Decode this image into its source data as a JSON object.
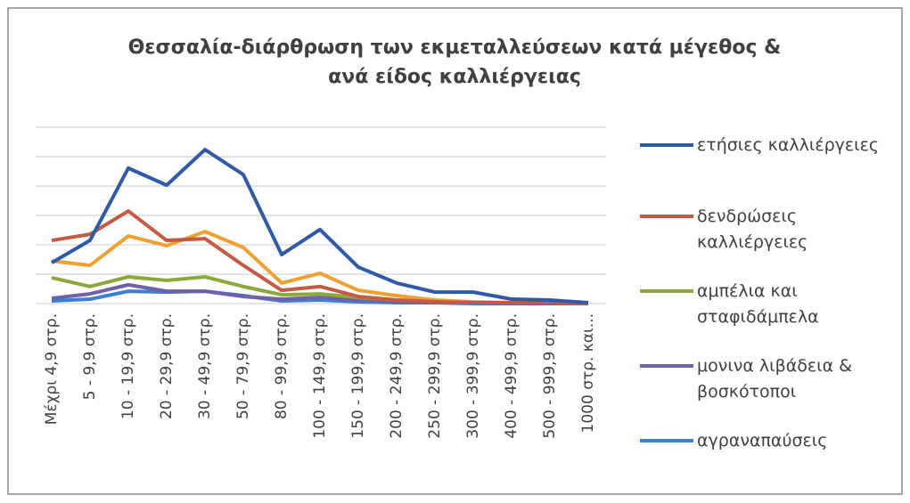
{
  "chart_data": {
    "type": "line",
    "title": "Θεσσαλία-διάρθρωση των εκμεταλλεύσεων κατά μέγεθος & ανά είδος καλλιέργειας",
    "categories": [
      "Μέχρι 4,9 στρ.",
      "5 - 9,9 στρ.",
      "10 - 19,9 στρ.",
      "20 - 29,9 στρ.",
      "30 - 49,9 στρ.",
      "50 - 79,9 στρ.",
      "80 - 99,9 στρ.",
      "100 - 149,9 στρ.",
      "150 - 199,9 στρ.",
      "200 - 249,9 στρ.",
      "250 - 299,9 στρ.",
      "300 - 399,9 στρ.",
      "400 - 499,9 στρ.",
      "500 - 999,9 στρ.",
      "1000 στρ. και..."
    ],
    "ylim": [
      0,
      6
    ],
    "yticks": [
      0,
      1,
      2,
      3,
      4,
      5,
      6
    ],
    "grid": true,
    "legend": "right",
    "series": [
      {
        "name": "ετήσιες καλλιέργειες",
        "color": "#2e5aa8",
        "values": [
          1.39,
          2.15,
          4.61,
          4.03,
          5.24,
          4.39,
          1.67,
          2.52,
          1.24,
          0.7,
          0.39,
          0.39,
          0.15,
          0.12,
          0.03
        ]
      },
      {
        "name": "δενδρώσεις καλλιέργειες",
        "color": "#c55a44",
        "values": [
          2.15,
          2.36,
          3.15,
          2.15,
          2.21,
          1.3,
          0.45,
          0.58,
          0.24,
          0.12,
          0.06,
          0.03,
          0.03,
          0.03,
          0
        ]
      },
      {
        "name": "αμπέλια και σταφιδάμπελα",
        "color": "#8aa83c",
        "values": [
          0.88,
          0.58,
          0.91,
          0.79,
          0.91,
          0.58,
          0.3,
          0.33,
          0.21,
          0.12,
          0.06,
          0.03,
          0.03,
          0.03,
          0
        ]
      },
      {
        "name": "μονινα λιβάδεια & βοσκότοποι",
        "color": "#7060a8",
        "values": [
          0.18,
          0.33,
          0.64,
          0.42,
          0.42,
          0.24,
          0.15,
          0.21,
          0.12,
          0.06,
          0.03,
          0.03,
          0,
          0,
          0
        ]
      },
      {
        "name": "αγραναπαύσεις",
        "color": "#3a7fd0",
        "values": [
          0.09,
          0.15,
          0.42,
          0.39,
          0.42,
          0.27,
          0.09,
          0.12,
          0.06,
          0.03,
          0.03,
          0,
          0,
          0,
          0
        ]
      },
      {
        "color": "#f0a030",
        "values": [
          1.45,
          1.3,
          2.3,
          1.97,
          2.45,
          1.91,
          0.7,
          1.03,
          0.45,
          0.27,
          0.12,
          0.06,
          0.03,
          0.03,
          0
        ]
      }
    ]
  }
}
